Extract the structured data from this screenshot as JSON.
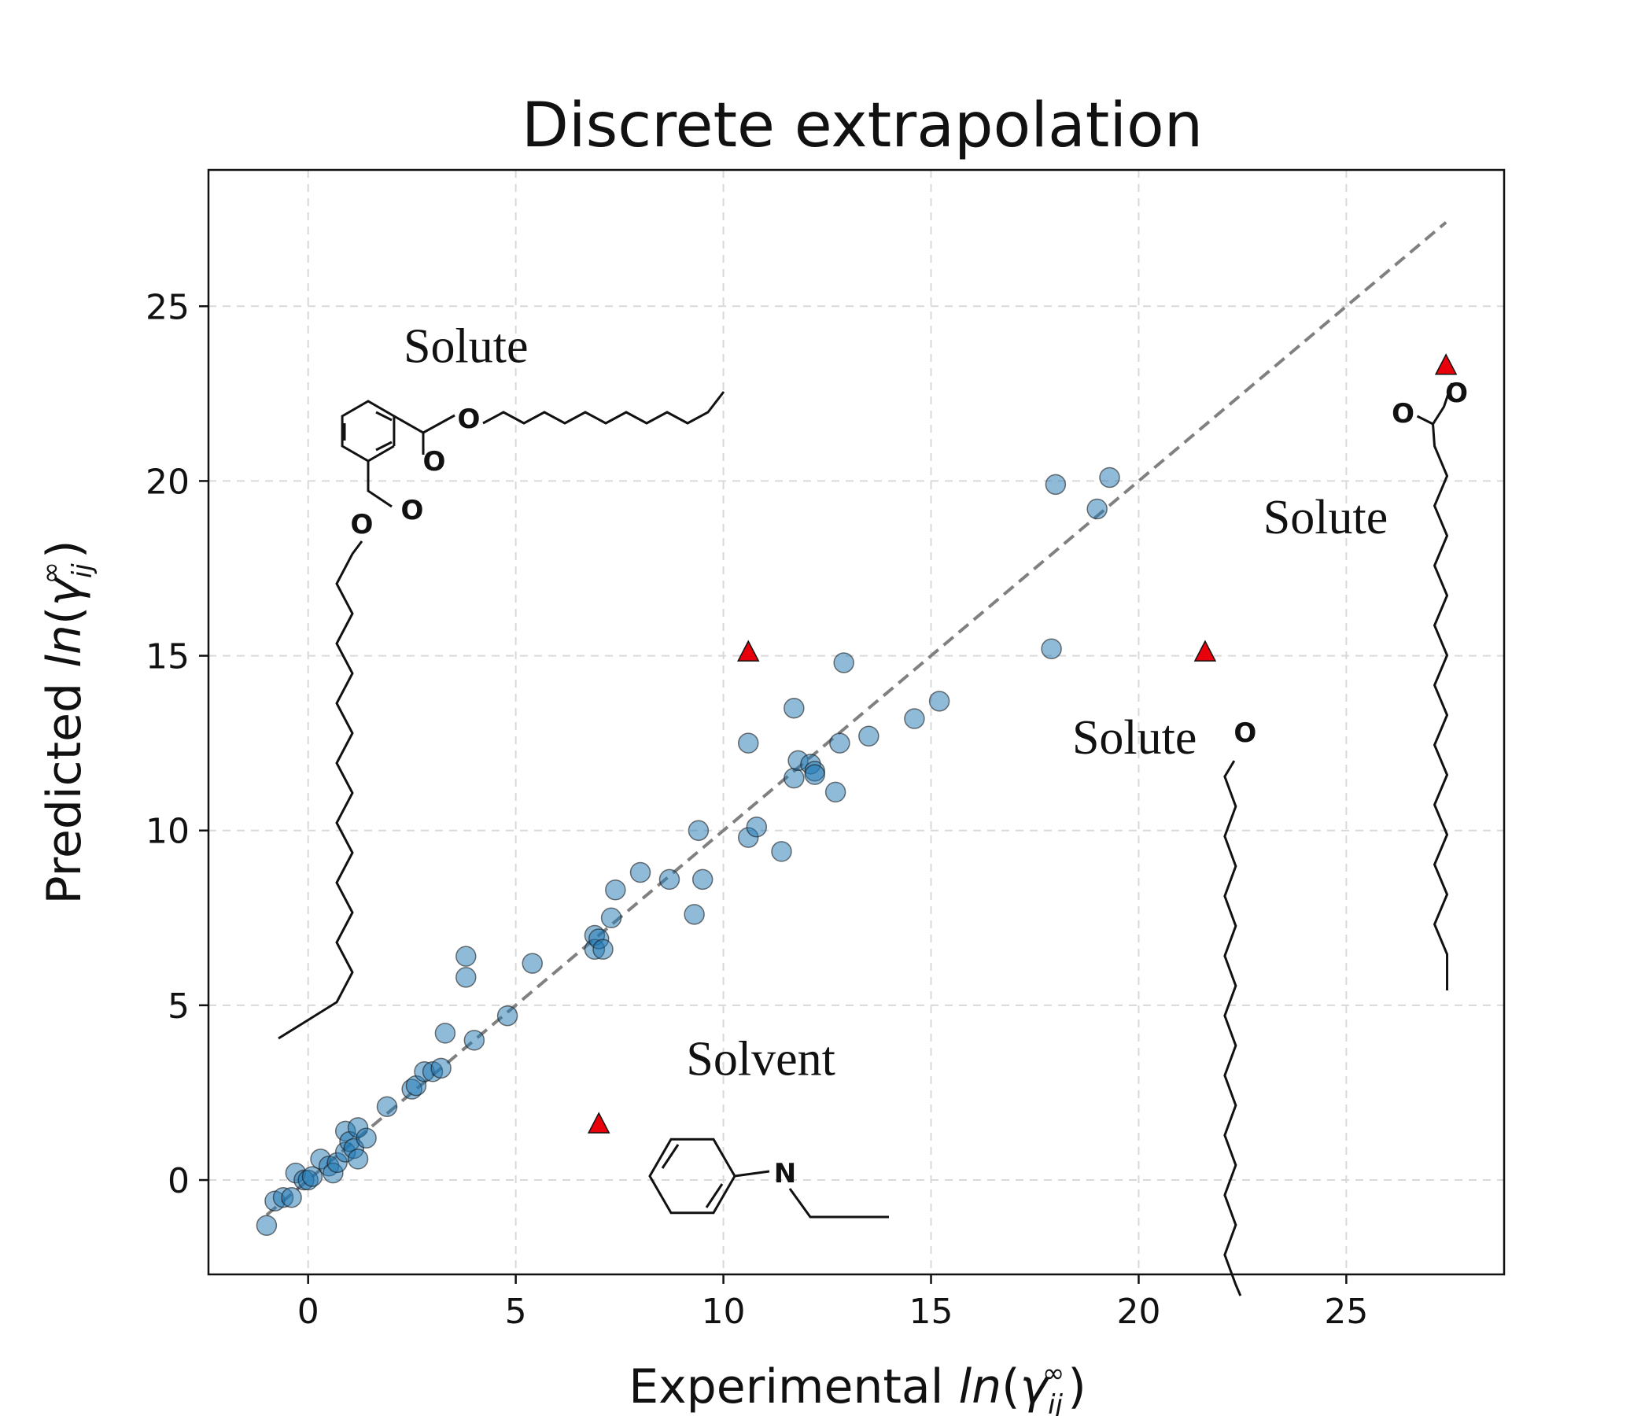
{
  "chart_data": {
    "type": "scatter",
    "title": "Discrete extrapolation",
    "xlabel": {
      "prefix": "Experimental ",
      "italic": "ln",
      "open": "(",
      "gamma": "γ",
      "sub": "ij",
      "sup": "∞",
      "close": ")"
    },
    "ylabel": {
      "prefix": "Predicted ",
      "italic": "ln",
      "open": "(",
      "gamma": "γ",
      "sub": "ij",
      "sup": "∞",
      "close": ")"
    },
    "xlim": [
      -2.4,
      28.8
    ],
    "ylim": [
      -2.7,
      28.9
    ],
    "xticks": [
      0,
      5,
      10,
      15,
      20,
      25
    ],
    "yticks": [
      0,
      5,
      10,
      15,
      20,
      25
    ],
    "grid": true,
    "parity_line": {
      "from": [
        -1,
        -1
      ],
      "to": [
        27.4,
        27.4
      ],
      "color": "#808080",
      "style": "dashed"
    },
    "colors": {
      "points": "#1f77b4",
      "highlight": "#e8000b",
      "grid": "#d9d9d9"
    },
    "series": [
      {
        "marker": "circle",
        "points": [
          [
            -1.0,
            -1.3
          ],
          [
            -0.8,
            -0.6
          ],
          [
            -0.6,
            -0.5
          ],
          [
            -0.4,
            -0.5
          ],
          [
            -0.3,
            0.2
          ],
          [
            -0.1,
            0.0
          ],
          [
            0.0,
            0.0
          ],
          [
            0.1,
            0.1
          ],
          [
            0.3,
            0.6
          ],
          [
            0.5,
            0.4
          ],
          [
            0.6,
            0.2
          ],
          [
            0.7,
            0.5
          ],
          [
            0.9,
            0.8
          ],
          [
            0.9,
            1.4
          ],
          [
            1.0,
            1.1
          ],
          [
            1.1,
            0.9
          ],
          [
            1.2,
            0.6
          ],
          [
            1.2,
            1.5
          ],
          [
            1.4,
            1.2
          ],
          [
            1.9,
            2.1
          ],
          [
            2.5,
            2.6
          ],
          [
            2.6,
            2.7
          ],
          [
            2.8,
            3.1
          ],
          [
            3.0,
            3.1
          ],
          [
            3.2,
            3.2
          ],
          [
            3.3,
            4.2
          ],
          [
            3.8,
            6.4
          ],
          [
            3.8,
            5.8
          ],
          [
            4.0,
            4.0
          ],
          [
            4.8,
            4.7
          ],
          [
            5.4,
            6.2
          ],
          [
            6.9,
            7.0
          ],
          [
            6.9,
            6.6
          ],
          [
            7.0,
            6.9
          ],
          [
            7.1,
            6.6
          ],
          [
            7.3,
            7.5
          ],
          [
            7.4,
            8.3
          ],
          [
            8.0,
            8.8
          ],
          [
            8.7,
            8.6
          ],
          [
            9.3,
            7.6
          ],
          [
            9.4,
            10.0
          ],
          [
            9.5,
            8.6
          ],
          [
            10.6,
            9.8
          ],
          [
            10.6,
            12.5
          ],
          [
            10.8,
            10.1
          ],
          [
            11.4,
            9.4
          ],
          [
            11.7,
            13.5
          ],
          [
            11.7,
            11.5
          ],
          [
            11.8,
            12.0
          ],
          [
            12.1,
            11.9
          ],
          [
            12.2,
            11.7
          ],
          [
            12.2,
            11.6
          ],
          [
            12.7,
            11.1
          ],
          [
            12.8,
            12.5
          ],
          [
            12.9,
            14.8
          ],
          [
            13.5,
            12.7
          ],
          [
            14.6,
            13.2
          ],
          [
            15.2,
            13.7
          ],
          [
            17.9,
            15.2
          ],
          [
            18.0,
            19.9
          ],
          [
            19.0,
            19.2
          ],
          [
            19.3,
            20.1
          ]
        ]
      },
      {
        "marker": "triangle",
        "points": [
          [
            7.0,
            1.6
          ],
          [
            10.6,
            15.1
          ],
          [
            21.6,
            15.1
          ],
          [
            27.4,
            23.3
          ]
        ]
      }
    ],
    "annotations": [
      {
        "text": "Solute",
        "x": 3.8,
        "y": 23.4
      },
      {
        "text": "Solute",
        "x": 24.5,
        "y": 18.5
      },
      {
        "text": "Solute",
        "x": 19.9,
        "y": 12.2
      },
      {
        "text": "Solvent",
        "x": 10.9,
        "y": 3.0
      }
    ],
    "atom_labels": {
      "oxygen": "O",
      "nitrogen": "N"
    }
  }
}
